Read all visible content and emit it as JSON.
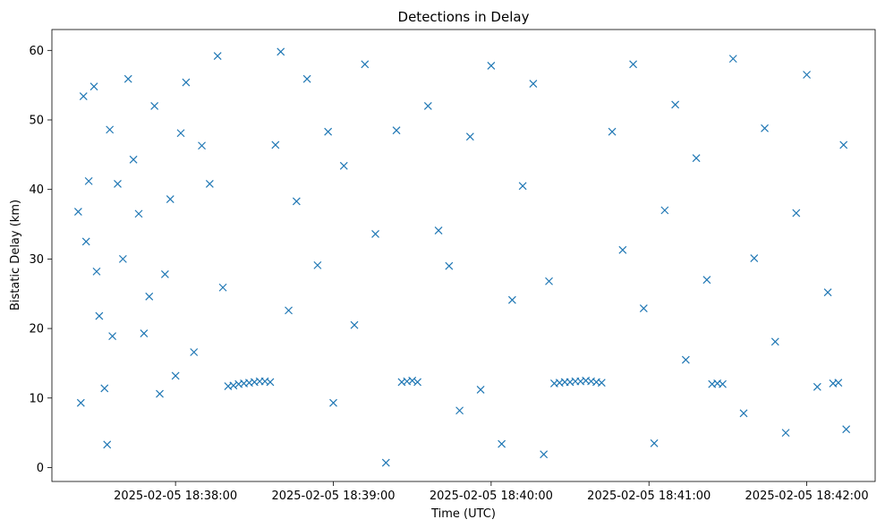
{
  "chart_data": {
    "type": "scatter",
    "title": "Detections in Delay",
    "xlabel": "Time (UTC)",
    "ylabel": "Bistatic Delay (km)",
    "marker": "x",
    "color": "#1f77b4",
    "xlim": [
      "2025-02-05 18:37:13",
      "2025-02-05 18:42:26"
    ],
    "ylim": [
      -2,
      63
    ],
    "x_ticks": [
      "2025-02-05 18:38:00",
      "2025-02-05 18:39:00",
      "2025-02-05 18:40:00",
      "2025-02-05 18:41:00",
      "2025-02-05 18:42:00"
    ],
    "y_ticks": [
      0,
      10,
      20,
      30,
      40,
      50,
      60
    ],
    "grid": false,
    "points": [
      [
        "2025-02-05 18:37:23",
        36.8
      ],
      [
        "2025-02-05 18:37:24",
        9.3
      ],
      [
        "2025-02-05 18:37:25",
        53.4
      ],
      [
        "2025-02-05 18:37:26",
        32.5
      ],
      [
        "2025-02-05 18:37:27",
        41.2
      ],
      [
        "2025-02-05 18:37:29",
        54.8
      ],
      [
        "2025-02-05 18:37:30",
        28.2
      ],
      [
        "2025-02-05 18:37:31",
        21.8
      ],
      [
        "2025-02-05 18:37:33",
        11.4
      ],
      [
        "2025-02-05 18:37:34",
        3.3
      ],
      [
        "2025-02-05 18:37:35",
        48.6
      ],
      [
        "2025-02-05 18:37:36",
        18.9
      ],
      [
        "2025-02-05 18:37:38",
        40.8
      ],
      [
        "2025-02-05 18:37:40",
        30.0
      ],
      [
        "2025-02-05 18:37:42",
        55.9
      ],
      [
        "2025-02-05 18:37:44",
        44.3
      ],
      [
        "2025-02-05 18:37:46",
        36.5
      ],
      [
        "2025-02-05 18:37:48",
        19.3
      ],
      [
        "2025-02-05 18:37:50",
        24.6
      ],
      [
        "2025-02-05 18:37:52",
        52.0
      ],
      [
        "2025-02-05 18:37:54",
        10.6
      ],
      [
        "2025-02-05 18:37:56",
        27.8
      ],
      [
        "2025-02-05 18:37:58",
        38.6
      ],
      [
        "2025-02-05 18:38:00",
        13.2
      ],
      [
        "2025-02-05 18:38:02",
        48.1
      ],
      [
        "2025-02-05 18:38:04",
        55.4
      ],
      [
        "2025-02-05 18:38:07",
        16.6
      ],
      [
        "2025-02-05 18:38:10",
        46.3
      ],
      [
        "2025-02-05 18:38:13",
        40.8
      ],
      [
        "2025-02-05 18:38:16",
        59.2
      ],
      [
        "2025-02-05 18:38:18",
        25.9
      ],
      [
        "2025-02-05 18:38:20",
        11.7
      ],
      [
        "2025-02-05 18:38:22",
        11.8
      ],
      [
        "2025-02-05 18:38:24",
        12.0
      ],
      [
        "2025-02-05 18:38:26",
        12.1
      ],
      [
        "2025-02-05 18:38:28",
        12.2
      ],
      [
        "2025-02-05 18:38:30",
        12.3
      ],
      [
        "2025-02-05 18:38:32",
        12.4
      ],
      [
        "2025-02-05 18:38:34",
        12.4
      ],
      [
        "2025-02-05 18:38:36",
        12.3
      ],
      [
        "2025-02-05 18:38:38",
        46.4
      ],
      [
        "2025-02-05 18:38:40",
        59.8
      ],
      [
        "2025-02-05 18:38:43",
        22.6
      ],
      [
        "2025-02-05 18:38:46",
        38.3
      ],
      [
        "2025-02-05 18:38:50",
        55.9
      ],
      [
        "2025-02-05 18:38:54",
        29.1
      ],
      [
        "2025-02-05 18:38:58",
        48.3
      ],
      [
        "2025-02-05 18:39:00",
        9.3
      ],
      [
        "2025-02-05 18:39:04",
        43.4
      ],
      [
        "2025-02-05 18:39:08",
        20.5
      ],
      [
        "2025-02-05 18:39:12",
        58.0
      ],
      [
        "2025-02-05 18:39:16",
        33.6
      ],
      [
        "2025-02-05 18:39:20",
        0.7
      ],
      [
        "2025-02-05 18:39:24",
        48.5
      ],
      [
        "2025-02-05 18:39:26",
        12.3
      ],
      [
        "2025-02-05 18:39:28",
        12.4
      ],
      [
        "2025-02-05 18:39:30",
        12.5
      ],
      [
        "2025-02-05 18:39:32",
        12.3
      ],
      [
        "2025-02-05 18:39:36",
        52.0
      ],
      [
        "2025-02-05 18:39:40",
        34.1
      ],
      [
        "2025-02-05 18:39:44",
        29.0
      ],
      [
        "2025-02-05 18:39:48",
        8.2
      ],
      [
        "2025-02-05 18:39:52",
        47.6
      ],
      [
        "2025-02-05 18:39:56",
        11.2
      ],
      [
        "2025-02-05 18:40:00",
        57.8
      ],
      [
        "2025-02-05 18:40:04",
        3.4
      ],
      [
        "2025-02-05 18:40:08",
        24.1
      ],
      [
        "2025-02-05 18:40:12",
        40.5
      ],
      [
        "2025-02-05 18:40:16",
        55.2
      ],
      [
        "2025-02-05 18:40:20",
        1.9
      ],
      [
        "2025-02-05 18:40:22",
        26.8
      ],
      [
        "2025-02-05 18:40:24",
        12.1
      ],
      [
        "2025-02-05 18:40:26",
        12.2
      ],
      [
        "2025-02-05 18:40:28",
        12.3
      ],
      [
        "2025-02-05 18:40:30",
        12.3
      ],
      [
        "2025-02-05 18:40:32",
        12.4
      ],
      [
        "2025-02-05 18:40:34",
        12.4
      ],
      [
        "2025-02-05 18:40:36",
        12.5
      ],
      [
        "2025-02-05 18:40:38",
        12.4
      ],
      [
        "2025-02-05 18:40:40",
        12.3
      ],
      [
        "2025-02-05 18:40:42",
        12.2
      ],
      [
        "2025-02-05 18:40:46",
        48.3
      ],
      [
        "2025-02-05 18:40:50",
        31.3
      ],
      [
        "2025-02-05 18:40:54",
        58.0
      ],
      [
        "2025-02-05 18:40:58",
        22.9
      ],
      [
        "2025-02-05 18:41:02",
        3.5
      ],
      [
        "2025-02-05 18:41:06",
        37.0
      ],
      [
        "2025-02-05 18:41:10",
        52.2
      ],
      [
        "2025-02-05 18:41:14",
        15.5
      ],
      [
        "2025-02-05 18:41:18",
        44.5
      ],
      [
        "2025-02-05 18:41:22",
        27.0
      ],
      [
        "2025-02-05 18:41:24",
        12.0
      ],
      [
        "2025-02-05 18:41:26",
        12.1
      ],
      [
        "2025-02-05 18:41:28",
        12.0
      ],
      [
        "2025-02-05 18:41:32",
        58.8
      ],
      [
        "2025-02-05 18:41:36",
        7.8
      ],
      [
        "2025-02-05 18:41:40",
        30.1
      ],
      [
        "2025-02-05 18:41:44",
        48.8
      ],
      [
        "2025-02-05 18:41:48",
        18.1
      ],
      [
        "2025-02-05 18:41:52",
        5.0
      ],
      [
        "2025-02-05 18:41:56",
        36.6
      ],
      [
        "2025-02-05 18:42:00",
        56.5
      ],
      [
        "2025-02-05 18:42:04",
        11.6
      ],
      [
        "2025-02-05 18:42:08",
        25.2
      ],
      [
        "2025-02-05 18:42:10",
        12.1
      ],
      [
        "2025-02-05 18:42:12",
        12.2
      ],
      [
        "2025-02-05 18:42:14",
        46.4
      ],
      [
        "2025-02-05 18:42:15",
        5.5
      ]
    ]
  }
}
